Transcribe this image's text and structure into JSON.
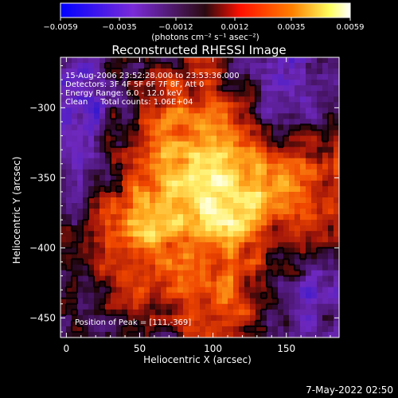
{
  "chart_data": {
    "type": "heatmap",
    "title": "Reconstructed RHESSI Image",
    "xlabel": "Heliocentric X (arcsec)",
    "ylabel": "Heliocentric Y (arcsec)",
    "xlim": [
      -4,
      186
    ],
    "ylim": [
      -464,
      -264
    ],
    "xticks": [
      0,
      50,
      100,
      150
    ],
    "yticks": [
      -300,
      -350,
      -400,
      -450
    ],
    "colorbar": {
      "label": "(photons cm⁻² s⁻¹ asec⁻²)",
      "range": [
        -0.0059,
        0.0059
      ],
      "ticks": [
        "-0.0059",
        "-0.0035",
        "-0.0012",
        "0.0012",
        "0.0035",
        "0.0059"
      ],
      "colormap": [
        "#0000ff",
        "#8a2be2",
        "#2a0a10",
        "#ff0000",
        "#ff7a00",
        "#ffff80",
        "#ffffff"
      ]
    },
    "annotations": [
      "15-Aug-2006 23:52:28.000 to 23:53:36.000",
      "Detectors: 3F 4F 5F 6F 7F 8F, Att 0",
      "Energy Range: 6.0 - 12.0 keV",
      "Clean     Total counts: 1.06E+04"
    ],
    "peak_label": "Position of Peak = [111,-369]",
    "peak": [
      111,
      -369
    ]
  },
  "footer": {
    "date": "7-May-2022 02:50"
  }
}
